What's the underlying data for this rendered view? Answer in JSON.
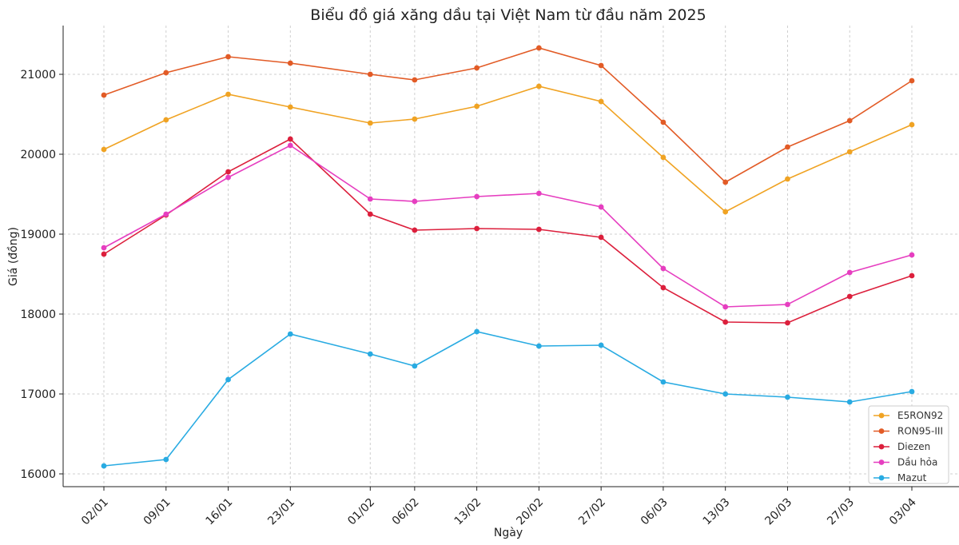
{
  "chart_data": {
    "type": "line",
    "title": "Biểu đồ giá xăng dầu tại Việt Nam từ đầu năm 2025",
    "xlabel": "Ngày",
    "ylabel": "Giá (đồng)",
    "grid": true,
    "legend_position": "bottom-right",
    "x_ticks": [
      {
        "label": "02/01",
        "day": 2
      },
      {
        "label": "09/01",
        "day": 9
      },
      {
        "label": "16/01",
        "day": 16
      },
      {
        "label": "23/01",
        "day": 23
      },
      {
        "label": "01/02",
        "day": 32
      },
      {
        "label": "06/02",
        "day": 37
      },
      {
        "label": "13/02",
        "day": 44
      },
      {
        "label": "20/02",
        "day": 51
      },
      {
        "label": "27/02",
        "day": 58
      },
      {
        "label": "06/03",
        "day": 65
      },
      {
        "label": "13/03",
        "day": 72
      },
      {
        "label": "20/03",
        "day": 79
      },
      {
        "label": "27/03",
        "day": 86
      },
      {
        "label": "03/04",
        "day": 93
      }
    ],
    "xlim": [
      0,
      95
    ],
    "y_ticks": [
      16000,
      17000,
      18000,
      19000,
      20000,
      21000
    ],
    "ylim": [
      15840,
      21600
    ],
    "series": [
      {
        "name": "E5RON92",
        "color": "#f0a323",
        "values": [
          20060,
          20430,
          20750,
          20590,
          20390,
          20440,
          20600,
          20850,
          20660,
          19960,
          19280,
          19690,
          20030,
          20370
        ]
      },
      {
        "name": "RON95-III",
        "color": "#e25b26",
        "values": [
          20740,
          21020,
          21220,
          21140,
          21000,
          20930,
          21080,
          21330,
          21110,
          20400,
          19650,
          20090,
          20420,
          20920
        ]
      },
      {
        "name": "Diezen",
        "color": "#dc1f3c",
        "values": [
          18750,
          19240,
          19780,
          20190,
          19250,
          19050,
          19070,
          19060,
          18960,
          18330,
          17900,
          17890,
          18220,
          18480
        ]
      },
      {
        "name": "Dầu hỏa",
        "color": "#e63ec0",
        "values": [
          18830,
          19250,
          19710,
          20110,
          19440,
          19410,
          19470,
          19510,
          19340,
          18570,
          18090,
          18120,
          18520,
          18740
        ]
      },
      {
        "name": "Mazut",
        "color": "#29abe2",
        "values": [
          16100,
          16180,
          17180,
          17750,
          17500,
          17350,
          17780,
          17600,
          17610,
          17150,
          17000,
          16960,
          16900,
          17030
        ]
      }
    ]
  }
}
